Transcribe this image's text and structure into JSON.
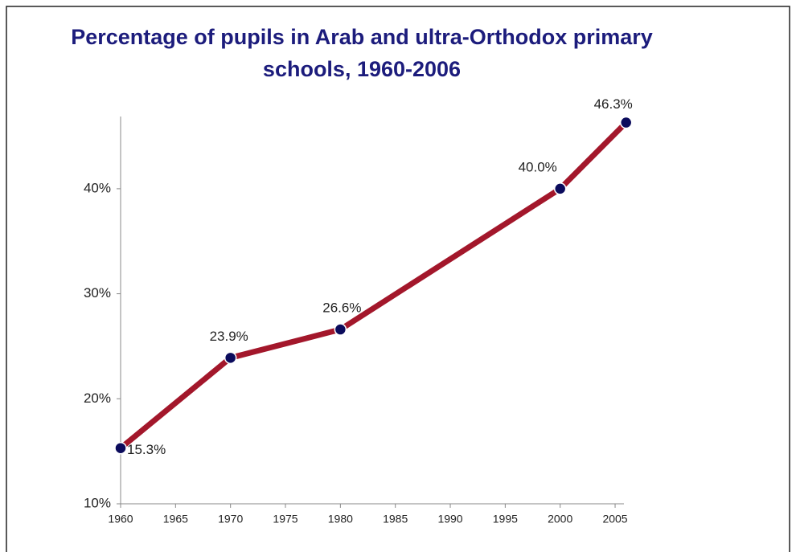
{
  "chart_data": {
    "type": "line",
    "title": "Percentage of pupils in Arab and ultra-Orthodox primary schools, 1960-2006",
    "x": [
      1960,
      1970,
      1980,
      2000,
      2006
    ],
    "series": [
      {
        "name": "Pupils in Arab and ultra-Orthodox primary schools",
        "color": "#a3172b",
        "marker_color": "#0b0b5c",
        "values": [
          15.3,
          23.9,
          26.6,
          40.0,
          46.3
        ],
        "value_labels": [
          "15.3%",
          "23.9%",
          "26.6%",
          "40.0%",
          "46.3%"
        ]
      }
    ],
    "xlim": [
      1960,
      2006
    ],
    "xticks": [
      1960,
      1965,
      1970,
      1975,
      1980,
      1985,
      1990,
      1995,
      2000,
      2005
    ],
    "ylim": [
      10,
      47
    ],
    "yticks": [
      {
        "value": 10,
        "label": "10%"
      },
      {
        "value": 20,
        "label": "20%"
      },
      {
        "value": 30,
        "label": "30%"
      },
      {
        "value": 40,
        "label": "40%"
      }
    ],
    "grid": false
  }
}
